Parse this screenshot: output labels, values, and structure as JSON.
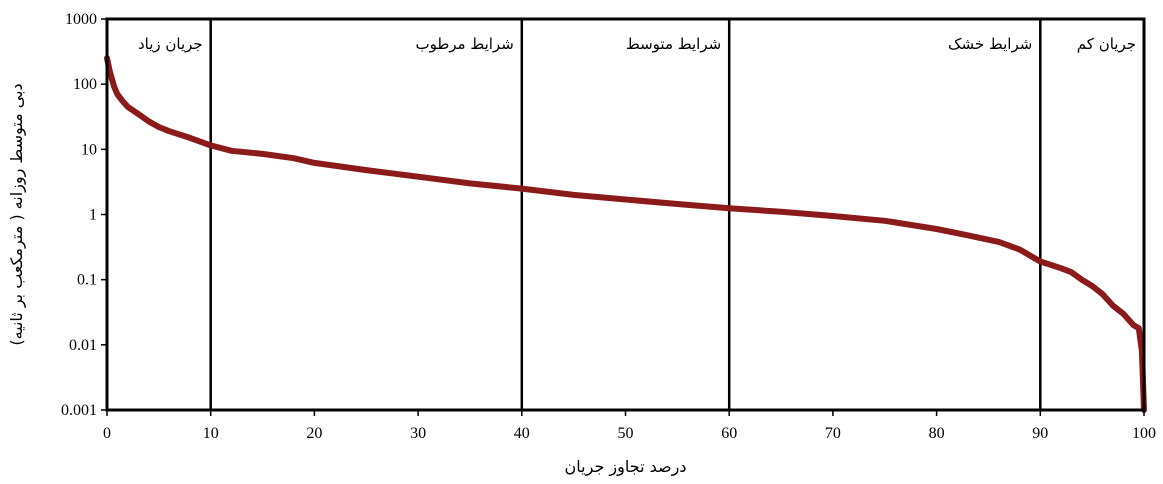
{
  "chart_data": {
    "type": "line",
    "title": "",
    "xlabel": "درصد تجاوز جریان",
    "ylabel": "دبی متوسط روزانه ( مترمکعب بر ثانیه)",
    "xlim": [
      0,
      100
    ],
    "ylim": [
      0.001,
      1000
    ],
    "yscale": "log",
    "grid": false,
    "legend": "none",
    "x_ticks": [
      "0",
      "10",
      "20",
      "30",
      "40",
      "50",
      "60",
      "70",
      "80",
      "90",
      "100"
    ],
    "y_ticks": [
      "0.001",
      "0.01",
      "0.1",
      "1",
      "10",
      "100",
      "1000"
    ],
    "zone_boundaries": [
      10,
      40,
      60,
      90
    ],
    "zones": [
      {
        "label": "جریان زیاد",
        "from": 0,
        "to": 10
      },
      {
        "label": "شرایط مرطوب",
        "from": 10,
        "to": 40
      },
      {
        "label": "شرایط متوسط",
        "from": 40,
        "to": 60
      },
      {
        "label": "شرایط خشک",
        "from": 60,
        "to": 90
      },
      {
        "label": "جریان کم",
        "from": 90,
        "to": 100
      }
    ],
    "series": [
      {
        "color": "#8b1a1a",
        "x": [
          0,
          0.3,
          0.7,
          1,
          1.5,
          2,
          3,
          4,
          5,
          6,
          8,
          10,
          12,
          15,
          18,
          20,
          25,
          30,
          35,
          40,
          45,
          50,
          55,
          60,
          65,
          70,
          75,
          80,
          83,
          86,
          88,
          90,
          92,
          93,
          94,
          95,
          96,
          97,
          98,
          99,
          99.5,
          99.8,
          100
        ],
        "y": [
          250,
          150,
          90,
          70,
          55,
          45,
          35,
          27,
          22,
          19,
          15,
          11.5,
          9.5,
          8.5,
          7.3,
          6.2,
          4.8,
          3.8,
          3.0,
          2.5,
          2.0,
          1.7,
          1.45,
          1.25,
          1.1,
          0.95,
          0.8,
          0.6,
          0.48,
          0.38,
          0.29,
          0.19,
          0.15,
          0.13,
          0.1,
          0.08,
          0.06,
          0.04,
          0.03,
          0.02,
          0.018,
          0.008,
          0.001
        ]
      }
    ]
  }
}
